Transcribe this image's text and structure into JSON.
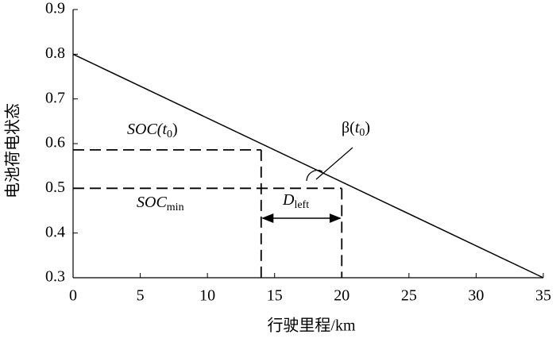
{
  "chart_data": {
    "type": "line",
    "x_label": "行驶里程/km",
    "y_label": "电池荷电状态",
    "x": [
      0,
      35
    ],
    "series": [
      {
        "name": "SOC",
        "color": "#000000",
        "values": [
          0.8,
          0.3
        ]
      }
    ],
    "reference_points": [
      {
        "x": 14,
        "y": 0.586
      },
      {
        "x": 20,
        "y": 0.5
      }
    ],
    "annotations": {
      "soc_t0": [
        "SOC(",
        "t",
        "0",
        ")"
      ],
      "soc_min": [
        "SOC",
        "min"
      ],
      "beta": [
        "β(",
        "t",
        "0",
        ")"
      ],
      "d_left": [
        "D",
        "left"
      ]
    },
    "xlim": [
      0,
      35
    ],
    "xticks": [
      0,
      5,
      10,
      15,
      20,
      25,
      30,
      35
    ],
    "ylim": [
      0.3,
      0.9
    ],
    "yticks": [
      0.3,
      0.4,
      0.5,
      0.6,
      0.7,
      0.8,
      0.9
    ]
  }
}
